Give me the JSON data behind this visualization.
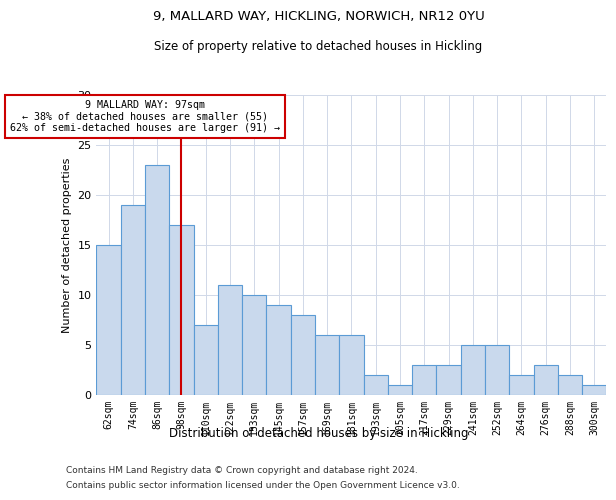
{
  "title1": "9, MALLARD WAY, HICKLING, NORWICH, NR12 0YU",
  "title2": "Size of property relative to detached houses in Hickling",
  "xlabel": "Distribution of detached houses by size in Hickling",
  "ylabel": "Number of detached properties",
  "categories": [
    "62sqm",
    "74sqm",
    "86sqm",
    "98sqm",
    "110sqm",
    "122sqm",
    "133sqm",
    "145sqm",
    "157sqm",
    "169sqm",
    "181sqm",
    "193sqm",
    "205sqm",
    "217sqm",
    "229sqm",
    "241sqm",
    "252sqm",
    "264sqm",
    "276sqm",
    "288sqm",
    "300sqm"
  ],
  "values": [
    15,
    19,
    23,
    17,
    7,
    11,
    10,
    9,
    8,
    6,
    6,
    2,
    1,
    3,
    3,
    5,
    5,
    2,
    3,
    2,
    1
  ],
  "bar_color": "#c9d9ed",
  "bar_edge_color": "#5b9bd5",
  "red_line_index": 3,
  "red_line_label": "9 MALLARD WAY: 97sqm",
  "annotation_line2": "← 38% of detached houses are smaller (55)",
  "annotation_line3": "62% of semi-detached houses are larger (91) →",
  "annotation_box_color": "#ffffff",
  "annotation_box_edge": "#cc0000",
  "ylim": [
    0,
    30
  ],
  "yticks": [
    0,
    5,
    10,
    15,
    20,
    25,
    30
  ],
  "grid_color": "#d0d8e8",
  "footer1": "Contains HM Land Registry data © Crown copyright and database right 2024.",
  "footer2": "Contains public sector information licensed under the Open Government Licence v3.0."
}
